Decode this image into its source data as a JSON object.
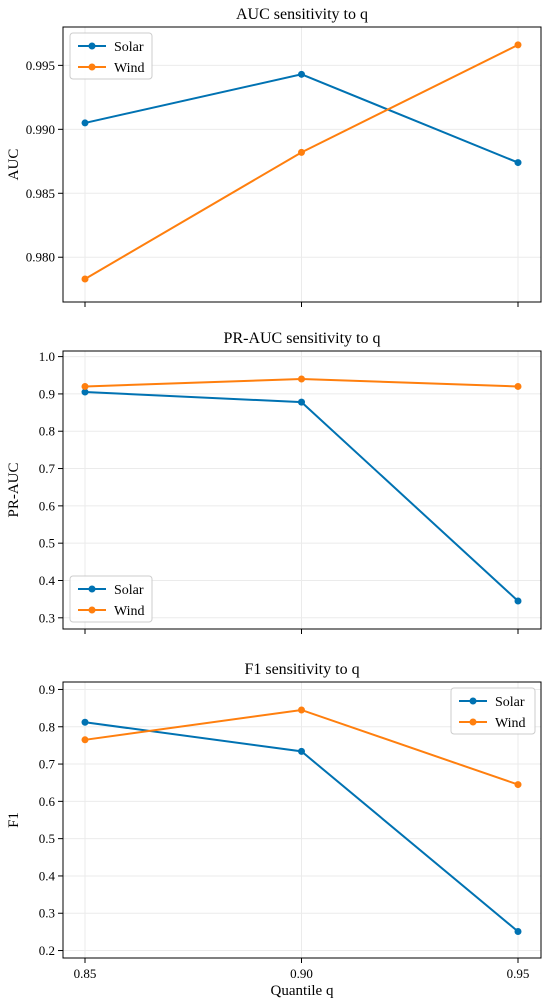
{
  "colors": {
    "solar": "#0072B2",
    "wind": "#FF7F0E",
    "grid": "#ebebeb",
    "frame": "#000000"
  },
  "chart_data": [
    {
      "type": "line",
      "title": "AUC sensitivity to q",
      "xlabel": "",
      "ylabel": "AUC",
      "x": [
        0.85,
        0.9,
        0.95
      ],
      "xticks": [
        "0.85",
        "0.90",
        "0.95"
      ],
      "yticks": [
        "0.980",
        "0.985",
        "0.990",
        "0.995"
      ],
      "ylim": [
        0.9765,
        0.998
      ],
      "grid": true,
      "legend": "top-left",
      "series": [
        {
          "name": "Solar",
          "color": "#0072B2",
          "values": [
            0.9905,
            0.9943,
            0.9874
          ]
        },
        {
          "name": "Wind",
          "color": "#FF7F0E",
          "values": [
            0.9783,
            0.9882,
            0.9966
          ]
        }
      ]
    },
    {
      "type": "line",
      "title": "PR-AUC sensitivity to q",
      "xlabel": "",
      "ylabel": "PR-AUC",
      "x": [
        0.85,
        0.9,
        0.95
      ],
      "xticks": [
        "0.85",
        "0.90",
        "0.95"
      ],
      "yticks": [
        "0.3",
        "0.4",
        "0.5",
        "0.6",
        "0.7",
        "0.8",
        "0.9",
        "1.0"
      ],
      "ylim": [
        0.27,
        1.015
      ],
      "grid": true,
      "legend": "bottom-left",
      "series": [
        {
          "name": "Solar",
          "color": "#0072B2",
          "values": [
            0.905,
            0.878,
            0.345
          ]
        },
        {
          "name": "Wind",
          "color": "#FF7F0E",
          "values": [
            0.92,
            0.94,
            0.92
          ]
        }
      ]
    },
    {
      "type": "line",
      "title": "F1 sensitivity to q",
      "xlabel": "Quantile q",
      "ylabel": "F1",
      "x": [
        0.85,
        0.9,
        0.95
      ],
      "xticks": [
        "0.85",
        "0.90",
        "0.95"
      ],
      "yticks": [
        "0.2",
        "0.3",
        "0.4",
        "0.5",
        "0.6",
        "0.7",
        "0.8",
        "0.9"
      ],
      "ylim": [
        0.18,
        0.92
      ],
      "grid": true,
      "legend": "top-right",
      "series": [
        {
          "name": "Solar",
          "color": "#0072B2",
          "values": [
            0.812,
            0.734,
            0.251
          ]
        },
        {
          "name": "Wind",
          "color": "#FF7F0E",
          "values": [
            0.765,
            0.845,
            0.645
          ]
        }
      ]
    }
  ]
}
